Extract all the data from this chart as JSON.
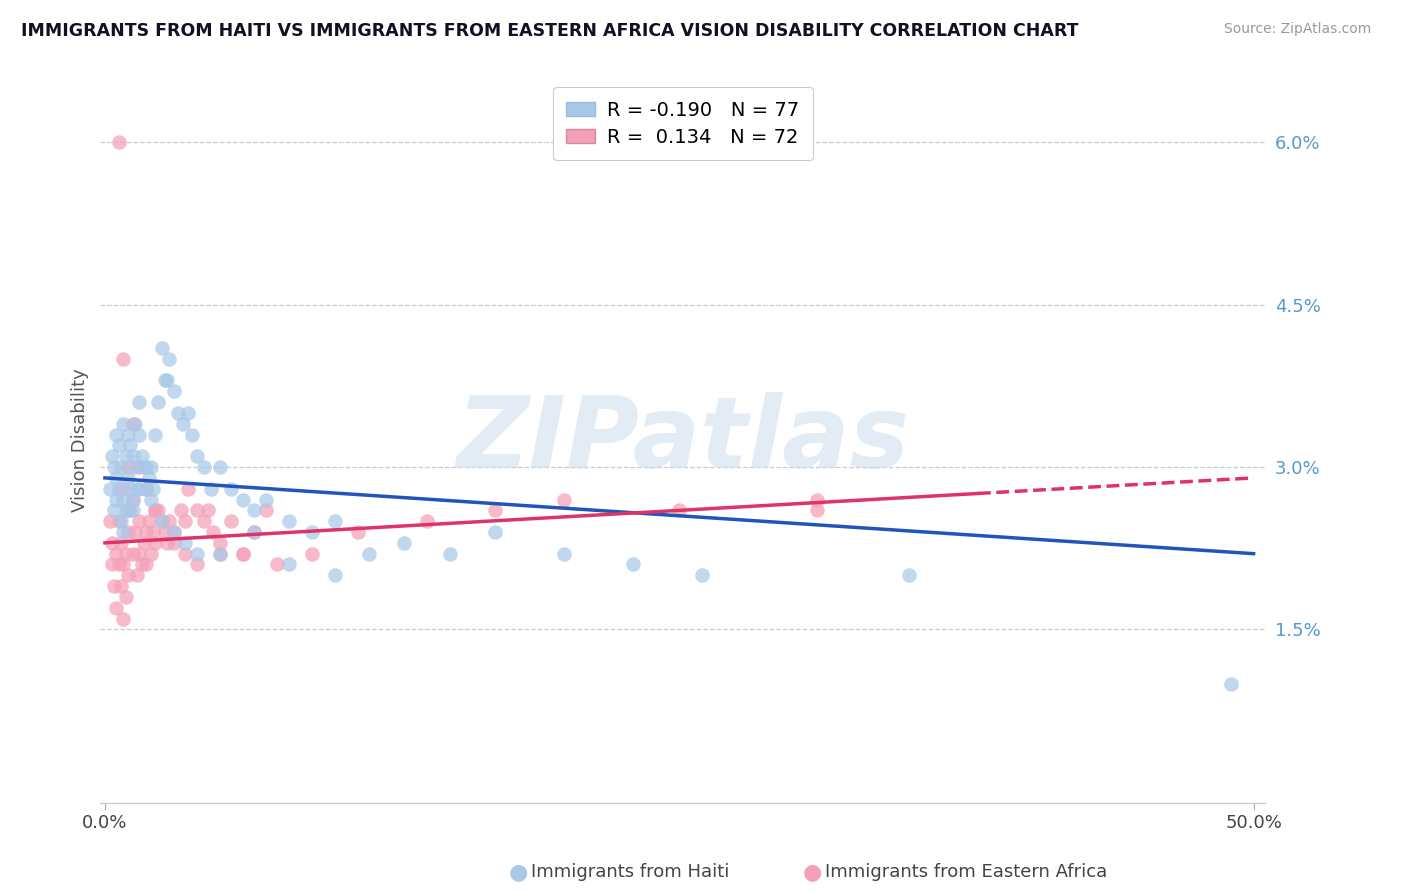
{
  "title": "IMMIGRANTS FROM HAITI VS IMMIGRANTS FROM EASTERN AFRICA VISION DISABILITY CORRELATION CHART",
  "source": "Source: ZipAtlas.com",
  "ylabel": "Vision Disability",
  "xlim": [
    0.0,
    0.5
  ],
  "ylim": [
    0.0,
    0.065
  ],
  "haiti_R": -0.19,
  "haiti_N": 77,
  "eastern_africa_R": 0.134,
  "eastern_africa_N": 72,
  "haiti_color": "#a8c8e8",
  "eastern_africa_color": "#f4a0b8",
  "haiti_line_color": "#2255bb",
  "eastern_africa_line_color": "#dd3366",
  "watermark_text": "ZIPatlas",
  "watermark_color": "#d0dff0",
  "ytick_vals": [
    0.0,
    0.015,
    0.03,
    0.045,
    0.06
  ],
  "ytick_labels": [
    "",
    "1.5%",
    "3.0%",
    "4.5%",
    "6.0%"
  ],
  "legend_haiti_label": "R = -0.190   N = 77",
  "legend_ea_label": "R =  0.134   N = 72",
  "bottom_legend_haiti": "Immigrants from Haiti",
  "bottom_legend_ea": "Immigrants from Eastern Africa",
  "haiti_x": [
    0.002,
    0.003,
    0.004,
    0.004,
    0.005,
    0.005,
    0.005,
    0.006,
    0.006,
    0.007,
    0.007,
    0.008,
    0.008,
    0.009,
    0.009,
    0.01,
    0.01,
    0.011,
    0.011,
    0.012,
    0.012,
    0.013,
    0.013,
    0.014,
    0.015,
    0.015,
    0.016,
    0.017,
    0.018,
    0.019,
    0.02,
    0.021,
    0.022,
    0.023,
    0.025,
    0.026,
    0.027,
    0.028,
    0.03,
    0.032,
    0.034,
    0.036,
    0.038,
    0.04,
    0.043,
    0.046,
    0.05,
    0.055,
    0.06,
    0.065,
    0.07,
    0.08,
    0.09,
    0.1,
    0.115,
    0.13,
    0.15,
    0.17,
    0.2,
    0.23,
    0.26,
    0.01,
    0.008,
    0.012,
    0.015,
    0.018,
    0.02,
    0.025,
    0.03,
    0.035,
    0.04,
    0.05,
    0.065,
    0.08,
    0.1,
    0.35,
    0.49
  ],
  "haiti_y": [
    0.028,
    0.031,
    0.03,
    0.026,
    0.029,
    0.027,
    0.033,
    0.028,
    0.032,
    0.025,
    0.03,
    0.027,
    0.034,
    0.026,
    0.031,
    0.029,
    0.033,
    0.028,
    0.032,
    0.027,
    0.031,
    0.03,
    0.034,
    0.028,
    0.033,
    0.036,
    0.031,
    0.03,
    0.028,
    0.029,
    0.03,
    0.028,
    0.033,
    0.036,
    0.041,
    0.038,
    0.038,
    0.04,
    0.037,
    0.035,
    0.034,
    0.035,
    0.033,
    0.031,
    0.03,
    0.028,
    0.03,
    0.028,
    0.027,
    0.026,
    0.027,
    0.025,
    0.024,
    0.025,
    0.022,
    0.023,
    0.022,
    0.024,
    0.022,
    0.021,
    0.02,
    0.026,
    0.024,
    0.026,
    0.028,
    0.03,
    0.027,
    0.025,
    0.024,
    0.023,
    0.022,
    0.022,
    0.024,
    0.021,
    0.02,
    0.02,
    0.01
  ],
  "eastern_x": [
    0.002,
    0.003,
    0.003,
    0.004,
    0.005,
    0.005,
    0.006,
    0.006,
    0.007,
    0.007,
    0.008,
    0.008,
    0.009,
    0.009,
    0.01,
    0.01,
    0.011,
    0.012,
    0.013,
    0.014,
    0.015,
    0.016,
    0.017,
    0.018,
    0.019,
    0.02,
    0.021,
    0.022,
    0.023,
    0.025,
    0.027,
    0.03,
    0.033,
    0.036,
    0.04,
    0.043,
    0.047,
    0.05,
    0.055,
    0.06,
    0.065,
    0.07,
    0.008,
    0.01,
    0.012,
    0.015,
    0.018,
    0.022,
    0.026,
    0.03,
    0.035,
    0.04,
    0.05,
    0.06,
    0.075,
    0.09,
    0.11,
    0.14,
    0.17,
    0.2,
    0.25,
    0.31,
    0.006,
    0.008,
    0.012,
    0.015,
    0.018,
    0.022,
    0.028,
    0.035,
    0.045,
    0.31
  ],
  "eastern_y": [
    0.025,
    0.023,
    0.021,
    0.019,
    0.017,
    0.022,
    0.021,
    0.025,
    0.019,
    0.023,
    0.016,
    0.021,
    0.018,
    0.022,
    0.02,
    0.024,
    0.026,
    0.022,
    0.024,
    0.02,
    0.022,
    0.021,
    0.023,
    0.021,
    0.025,
    0.022,
    0.024,
    0.023,
    0.026,
    0.025,
    0.023,
    0.024,
    0.026,
    0.028,
    0.026,
    0.025,
    0.024,
    0.022,
    0.025,
    0.022,
    0.024,
    0.026,
    0.028,
    0.03,
    0.027,
    0.025,
    0.024,
    0.026,
    0.024,
    0.023,
    0.022,
    0.021,
    0.023,
    0.022,
    0.021,
    0.022,
    0.024,
    0.025,
    0.026,
    0.027,
    0.026,
    0.026,
    0.06,
    0.04,
    0.034,
    0.03,
    0.028,
    0.026,
    0.025,
    0.025,
    0.026,
    0.027
  ]
}
